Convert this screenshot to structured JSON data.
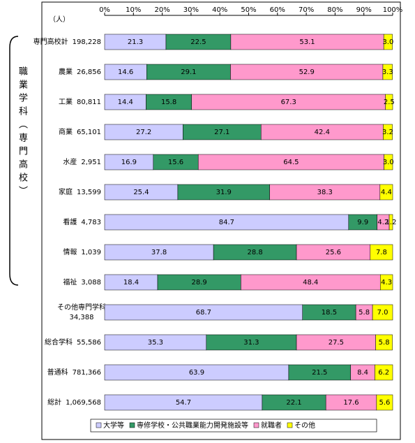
{
  "chart_data": {
    "type": "stacked-bar-horizontal",
    "unit_label": "（人）",
    "group_label": "職業学科（専門高校）",
    "categories": [
      "専門高校計",
      "農業",
      "工業",
      "商業",
      "水産",
      "家庭",
      "看護",
      "情報",
      "福祉",
      "その他専門学科",
      "総合学科",
      "普通科",
      "総計"
    ],
    "category_totals": [
      {
        "value": 198228,
        "label": "198,228"
      },
      {
        "value": 26856,
        "label": "26,856"
      },
      {
        "value": 80811,
        "label": "80,811"
      },
      {
        "value": 65101,
        "label": "65,101"
      },
      {
        "value": 2951,
        "label": "2,951"
      },
      {
        "value": 13599,
        "label": "13,599"
      },
      {
        "value": 4783,
        "label": "4,783"
      },
      {
        "value": 1039,
        "label": "1,039"
      },
      {
        "value": 3088,
        "label": "3,088"
      },
      {
        "value": 34388,
        "label": "34,388"
      },
      {
        "value": 55586,
        "label": "55,586"
      },
      {
        "value": 781366,
        "label": "781,366"
      },
      {
        "value": 1069568,
        "label": "1,069,568"
      }
    ],
    "xlim": [
      0,
      100
    ],
    "xticks": [
      {
        "value": 0,
        "label": "0%"
      },
      {
        "value": 10,
        "label": "10%"
      },
      {
        "value": 20,
        "label": "20%"
      },
      {
        "value": 30,
        "label": "30%"
      },
      {
        "value": 40,
        "label": "40%"
      },
      {
        "value": 50,
        "label": "50%"
      },
      {
        "value": 60,
        "label": "60%"
      },
      {
        "value": 70,
        "label": "70%"
      },
      {
        "value": 80,
        "label": "80%"
      },
      {
        "value": 90,
        "label": "90%"
      },
      {
        "value": 100,
        "label": "100%"
      }
    ],
    "series": [
      {
        "name": "大学等",
        "color": "#ccccff",
        "values": [
          21.3,
          14.6,
          14.4,
          27.2,
          16.9,
          25.4,
          84.7,
          37.8,
          18.4,
          68.7,
          35.3,
          63.9,
          54.7
        ],
        "value_labels": [
          "21.3",
          "14.6",
          "14.4",
          "27.2",
          "16.9",
          "25.4",
          "84.7",
          "37.8",
          "18.4",
          "68.7",
          "35.3",
          "63.9",
          "54.7"
        ]
      },
      {
        "name": "専修学校・公共職業能力開発施設等",
        "color": "#339966",
        "values": [
          22.5,
          29.1,
          15.8,
          27.1,
          15.6,
          31.9,
          9.9,
          28.8,
          28.9,
          18.5,
          31.3,
          21.5,
          22.1
        ],
        "value_labels": [
          "22.5",
          "29.1",
          "15.8",
          "27.1",
          "15.6",
          "31.9",
          "9.9",
          "28.8",
          "28.9",
          "18.5",
          "31.3",
          "21.5",
          "22.1"
        ]
      },
      {
        "name": "就職者",
        "color": "#ff99cc",
        "values": [
          53.1,
          52.9,
          67.3,
          42.4,
          64.5,
          38.3,
          4.2,
          25.6,
          48.4,
          5.8,
          27.5,
          8.4,
          17.6
        ],
        "value_labels": [
          "53.1",
          "52.9",
          "67.3",
          "42.4",
          "64.5",
          "38.3",
          "4.2",
          "25.6",
          "48.4",
          "5.8",
          "27.5",
          "8.4",
          "17.6"
        ]
      },
      {
        "name": "その他",
        "color": "#ffff00",
        "values": [
          3.0,
          3.3,
          2.5,
          3.2,
          3.0,
          4.4,
          1.2,
          7.8,
          4.3,
          7.0,
          5.8,
          6.2,
          5.6
        ],
        "value_labels": [
          "3.0",
          "3.3",
          "2.5",
          "3.2",
          "3.0",
          "4.4",
          "1.2",
          "7.8",
          "4.3",
          "7.0",
          "5.8",
          "6.2",
          "5.6"
        ]
      }
    ],
    "legend_position": "bottom",
    "grid": false
  }
}
